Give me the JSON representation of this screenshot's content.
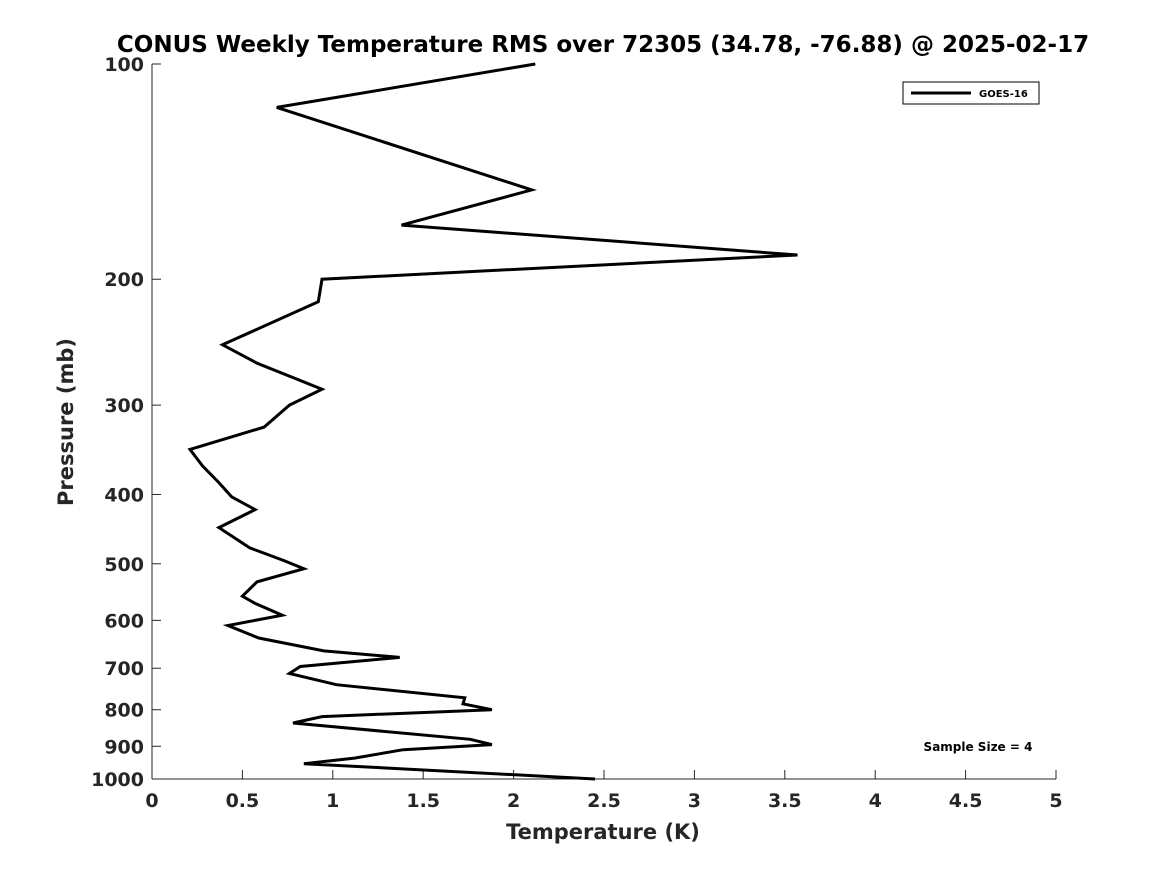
{
  "chart_data": {
    "type": "line",
    "title": "CONUS Weekly Temperature RMS over 72305 (34.78, -76.88) @ 2025-02-17",
    "xlabel": "Temperature (K)",
    "ylabel": "Pressure (mb)",
    "xlim": [
      0,
      5
    ],
    "ylim": [
      1000,
      100
    ],
    "yscale": "log",
    "x_ticks": [
      0,
      0.5,
      1,
      1.5,
      2,
      2.5,
      3,
      3.5,
      4,
      4.5,
      5
    ],
    "x_tick_labels": [
      "0",
      "0.5",
      "1",
      "1.5",
      "2",
      "2.5",
      "3",
      "3.5",
      "4",
      "4.5",
      "5"
    ],
    "y_ticks": [
      100,
      200,
      300,
      400,
      500,
      600,
      700,
      800,
      900,
      1000
    ],
    "y_tick_labels": [
      "100",
      "200",
      "300",
      "400",
      "500",
      "600",
      "700",
      "800",
      "900",
      "1000"
    ],
    "grid": false,
    "legend_position": "top-right",
    "annotation": "Sample Size = 4",
    "series": [
      {
        "name": "GOES-16",
        "color": "#000000",
        "points": [
          [
            2.12,
            100
          ],
          [
            0.69,
            115
          ],
          [
            2.1,
            150
          ],
          [
            1.38,
            168
          ],
          [
            3.57,
            185
          ],
          [
            0.94,
            200
          ],
          [
            0.92,
            215
          ],
          [
            0.39,
            247
          ],
          [
            0.58,
            262
          ],
          [
            0.94,
            285
          ],
          [
            0.76,
            300
          ],
          [
            0.62,
            322
          ],
          [
            0.21,
            346
          ],
          [
            0.28,
            365
          ],
          [
            0.37,
            385
          ],
          [
            0.44,
            403
          ],
          [
            0.57,
            420
          ],
          [
            0.37,
            445
          ],
          [
            0.54,
            475
          ],
          [
            0.73,
            495
          ],
          [
            0.84,
            508
          ],
          [
            0.58,
            530
          ],
          [
            0.5,
            555
          ],
          [
            0.57,
            568
          ],
          [
            0.72,
            590
          ],
          [
            0.42,
            610
          ],
          [
            0.59,
            635
          ],
          [
            0.95,
            662
          ],
          [
            1.37,
            676
          ],
          [
            0.82,
            696
          ],
          [
            0.76,
            712
          ],
          [
            1.02,
            738
          ],
          [
            1.73,
            770
          ],
          [
            1.72,
            785
          ],
          [
            1.88,
            800
          ],
          [
            0.94,
            818
          ],
          [
            0.78,
            835
          ],
          [
            1.76,
            880
          ],
          [
            1.88,
            895
          ],
          [
            1.39,
            910
          ],
          [
            1.12,
            935
          ],
          [
            0.84,
            952
          ],
          [
            2.45,
            1000
          ]
        ]
      }
    ]
  }
}
